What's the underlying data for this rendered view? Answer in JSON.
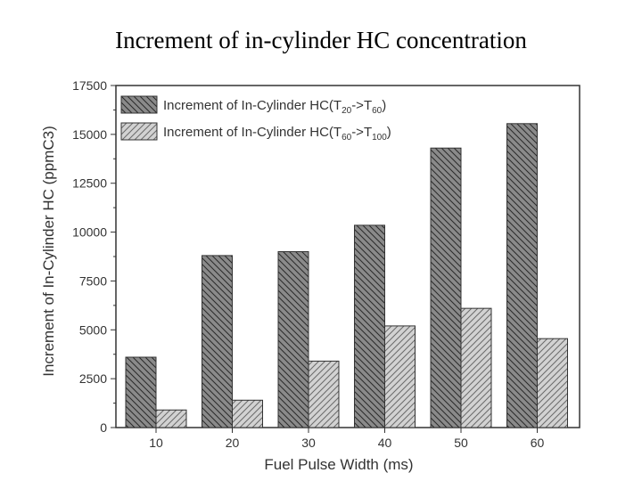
{
  "slide_title": "Increment of in-cylinder HC concentration",
  "chart_data": {
    "type": "bar",
    "categories": [
      "10",
      "20",
      "30",
      "40",
      "50",
      "60"
    ],
    "series": [
      {
        "name": "Increment of In-Cylinder HC(T20->T60)",
        "name_base": "Increment of In-Cylinder HC(T",
        "name_sub1": "20",
        "name_mid": "->T",
        "name_sub2": "60",
        "name_end": ")",
        "values": [
          3600,
          8800,
          9000,
          10350,
          14300,
          15550
        ]
      },
      {
        "name": "Increment of In-Cylinder HC(T60->T100)",
        "name_base": "Increment of In-Cylinder HC(T",
        "name_sub1": "60",
        "name_mid": "->T",
        "name_sub2": "100",
        "name_end": ")",
        "values": [
          900,
          1400,
          3400,
          5200,
          6100,
          4550
        ]
      }
    ],
    "xlabel": "Fuel Pulse Width (ms)",
    "ylabel": "Increment of In-Cylinder HC (ppmC3)",
    "ylim": [
      0,
      17500
    ],
    "yticks": [
      0,
      2500,
      5000,
      7500,
      10000,
      12500,
      15000,
      17500
    ],
    "yticks_labels": [
      "0",
      "2500",
      "5000",
      "7500",
      "10000",
      "12500",
      "15000",
      "17500"
    ],
    "grid": false,
    "legend_position": "top-left",
    "colors": {
      "series1_fill": "#8a8a8a",
      "series2_fill": "#d2d2d2",
      "hatch": "#2a2a2a"
    }
  }
}
